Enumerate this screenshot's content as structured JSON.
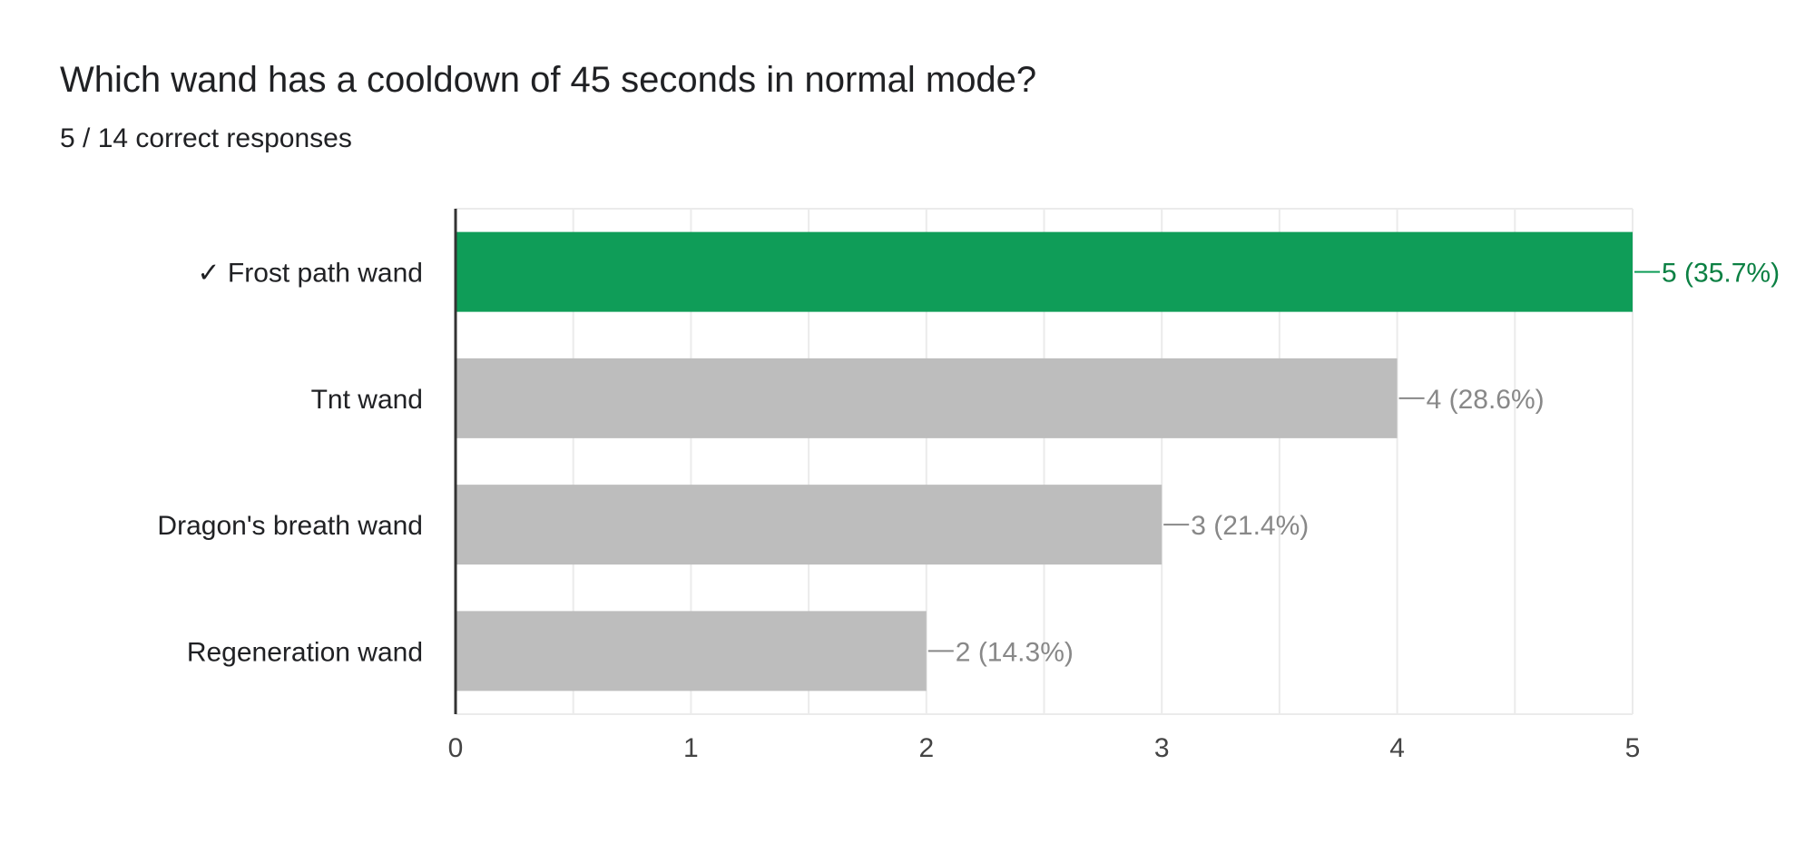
{
  "question": {
    "title": "Which wand has a cooldown of 45 seconds in normal mode?",
    "summary": "5 / 14 correct responses"
  },
  "colors": {
    "correct": "#0f9d58",
    "correct_label": "#0b8043",
    "incorrect": "#bdbdbd",
    "incorrect_label": "#888888",
    "grid": "#ebebeb",
    "axis": "#333333"
  },
  "chart_data": {
    "type": "bar",
    "orientation": "horizontal",
    "categories": [
      "✓ Frost path wand",
      "Tnt wand",
      "Dragon's breath wand",
      "Regeneration wand"
    ],
    "values": [
      5,
      4,
      3,
      2
    ],
    "data_labels": [
      "5 (35.7%)",
      "4 (28.6%)",
      "3 (21.4%)",
      "2 (14.3%)"
    ],
    "correct_index": 0,
    "xlim": [
      0,
      5
    ],
    "xticks": [
      0,
      1,
      2,
      3,
      4,
      5
    ],
    "grid": true,
    "legend": "none"
  }
}
